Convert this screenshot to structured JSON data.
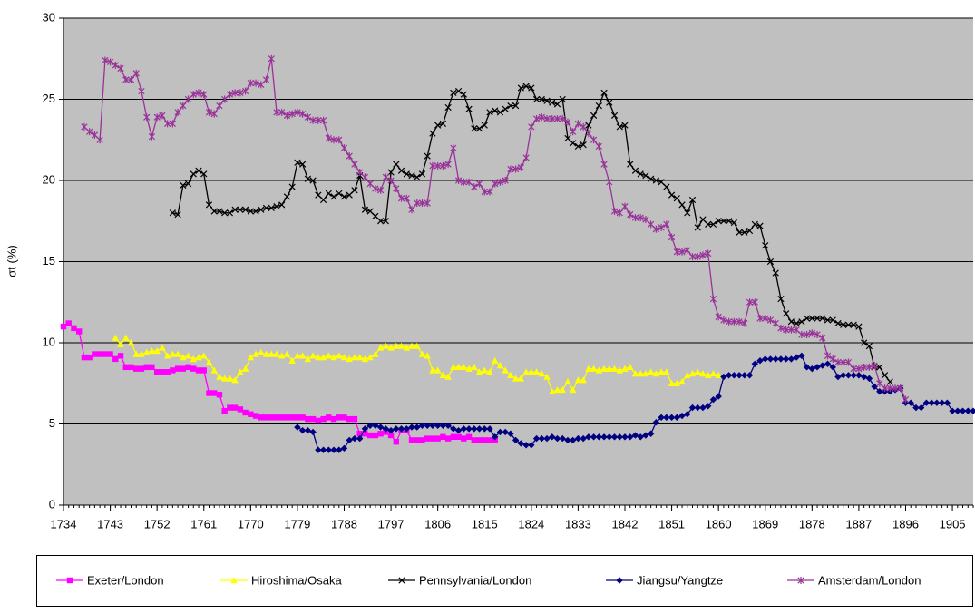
{
  "chart_data": {
    "type": "line",
    "y_label": "σt (%)",
    "xlim": [
      1734,
      1909
    ],
    "xticks": [
      1734,
      1743,
      1752,
      1761,
      1770,
      1779,
      1788,
      1797,
      1806,
      1815,
      1824,
      1833,
      1842,
      1851,
      1860,
      1869,
      1878,
      1887,
      1896,
      1905
    ],
    "ylim": [
      0,
      30
    ],
    "yticks": [
      0,
      5,
      10,
      15,
      20,
      25,
      30
    ],
    "grid": true,
    "legend": "bottom",
    "x": [
      1734,
      1735,
      1736,
      1737,
      1738,
      1739,
      1740,
      1741,
      1742,
      1743,
      1744,
      1745,
      1746,
      1747,
      1748,
      1749,
      1750,
      1751,
      1752,
      1753,
      1754,
      1755,
      1756,
      1757,
      1758,
      1759,
      1760,
      1761,
      1762,
      1763,
      1764,
      1765,
      1766,
      1767,
      1768,
      1769,
      1770,
      1771,
      1772,
      1773,
      1774,
      1775,
      1776,
      1777,
      1778,
      1779,
      1780,
      1781,
      1782,
      1783,
      1784,
      1785,
      1786,
      1787,
      1788,
      1789,
      1790,
      1791,
      1792,
      1793,
      1794,
      1795,
      1796,
      1797,
      1798,
      1799,
      1800,
      1801,
      1802,
      1803,
      1804,
      1805,
      1806,
      1807,
      1808,
      1809,
      1810,
      1811,
      1812,
      1813,
      1814,
      1815,
      1816,
      1817,
      1818,
      1819,
      1820,
      1821,
      1822,
      1823,
      1824,
      1825,
      1826,
      1827,
      1828,
      1829,
      1830,
      1831,
      1832,
      1833,
      1834,
      1835,
      1836,
      1837,
      1838,
      1839,
      1840,
      1841,
      1842,
      1843,
      1844,
      1845,
      1846,
      1847,
      1848,
      1849,
      1850,
      1851,
      1852,
      1853,
      1854,
      1855,
      1856,
      1857,
      1858,
      1859,
      1860,
      1861,
      1862,
      1863,
      1864,
      1865,
      1866,
      1867,
      1868,
      1869,
      1870,
      1871,
      1872,
      1873,
      1874,
      1875,
      1876,
      1877,
      1878,
      1879,
      1880,
      1881,
      1882,
      1883,
      1884,
      1885,
      1886,
      1887,
      1888,
      1889,
      1890,
      1891,
      1892,
      1893,
      1894,
      1895,
      1896,
      1897,
      1898,
      1899,
      1900,
      1901,
      1902,
      1903,
      1904,
      1905,
      1906,
      1907,
      1908,
      1909
    ],
    "series": [
      {
        "name": "Exeter/London",
        "color": "#ff00ff",
        "marker": "square",
        "values": [
          11.0,
          11.2,
          10.9,
          10.7,
          9.1,
          9.1,
          9.3,
          9.3,
          9.3,
          9.3,
          9.0,
          9.2,
          8.5,
          8.5,
          8.4,
          8.4,
          8.5,
          8.5,
          8.2,
          8.2,
          8.2,
          8.3,
          8.4,
          8.4,
          8.5,
          8.4,
          8.3,
          8.3,
          6.9,
          6.9,
          6.8,
          5.8,
          6.0,
          6.0,
          5.9,
          5.7,
          5.6,
          5.5,
          5.4,
          5.4,
          5.4,
          5.4,
          5.4,
          5.4,
          5.4,
          5.4,
          5.4,
          5.3,
          5.3,
          5.2,
          5.3,
          5.4,
          5.3,
          5.4,
          5.4,
          5.3,
          5.3,
          4.4,
          4.4,
          4.3,
          4.3,
          4.4,
          4.5,
          4.3,
          3.9,
          4.6,
          4.6,
          4.0,
          4.0,
          4.0,
          4.1,
          4.1,
          4.1,
          4.2,
          4.1,
          4.2,
          4.2,
          4.1,
          4.2,
          4.0,
          4.0,
          4.0,
          4.0,
          4.0,
          null,
          null,
          null,
          null,
          null,
          null,
          null,
          null,
          null,
          null,
          null,
          null,
          null,
          null,
          null,
          null,
          null,
          null,
          null,
          null,
          null,
          null,
          null,
          null,
          null,
          null,
          null,
          null,
          null,
          null,
          null,
          null,
          null,
          null,
          null,
          null,
          null,
          null,
          null,
          null,
          null,
          null,
          null,
          null,
          null,
          null,
          null,
          null,
          null,
          null,
          null,
          null,
          null,
          null,
          null,
          null,
          null,
          null,
          null,
          null,
          null,
          null,
          null,
          null,
          null,
          null,
          null,
          null,
          null,
          null,
          null,
          null,
          null,
          null,
          null,
          null,
          null,
          null,
          null,
          null,
          null,
          null,
          null,
          null,
          null,
          null,
          null,
          null,
          null,
          null,
          null,
          null
        ]
      },
      {
        "name": "Hiroshima/Osaka",
        "color": "#ffff00",
        "marker": "triangle",
        "values": [
          null,
          null,
          null,
          null,
          null,
          null,
          null,
          null,
          null,
          null,
          10.3,
          9.9,
          10.3,
          10.0,
          9.3,
          9.3,
          9.4,
          9.5,
          9.5,
          9.7,
          9.2,
          9.3,
          9.3,
          9.1,
          9.2,
          9.0,
          9.1,
          9.2,
          8.8,
          8.3,
          7.9,
          7.8,
          7.8,
          7.7,
          8.2,
          8.4,
          9.1,
          9.3,
          9.4,
          9.3,
          9.3,
          9.3,
          9.2,
          9.3,
          8.9,
          9.2,
          9.2,
          9.0,
          9.2,
          9.1,
          9.1,
          9.2,
          9.1,
          9.2,
          9.1,
          9.0,
          9.1,
          9.1,
          9.0,
          9.1,
          9.3,
          9.7,
          9.8,
          9.7,
          9.8,
          9.8,
          9.7,
          9.8,
          9.8,
          9.3,
          9.2,
          8.3,
          8.3,
          8.0,
          7.9,
          8.5,
          8.5,
          8.5,
          8.4,
          8.5,
          8.2,
          8.3,
          8.2,
          8.9,
          8.6,
          8.3,
          8.0,
          7.8,
          7.8,
          8.2,
          8.2,
          8.2,
          8.1,
          7.9,
          7.0,
          7.1,
          7.1,
          7.6,
          7.1,
          7.7,
          7.7,
          8.4,
          8.4,
          8.3,
          8.4,
          8.4,
          8.4,
          8.3,
          8.4,
          8.5,
          8.1,
          8.1,
          8.1,
          8.2,
          8.1,
          8.2,
          8.2,
          7.5,
          7.5,
          7.6,
          8.0,
          8.1,
          8.2,
          8.1,
          8.0,
          8.1,
          8.0,
          null,
          null,
          null,
          null,
          null,
          null,
          null,
          null,
          null,
          null,
          null,
          null,
          null,
          null,
          null,
          null,
          null,
          null,
          null,
          null,
          null,
          null,
          null,
          null,
          null,
          null,
          null,
          null,
          null,
          null,
          null,
          null,
          null,
          null,
          null,
          null,
          null,
          null,
          null,
          null,
          null,
          null,
          null,
          null,
          null,
          null,
          null,
          null,
          null
        ]
      },
      {
        "name": "Pennsylvania/London",
        "color": "#000000",
        "marker": "x",
        "values": [
          null,
          null,
          null,
          null,
          null,
          null,
          null,
          null,
          null,
          null,
          null,
          null,
          null,
          null,
          null,
          null,
          null,
          null,
          null,
          null,
          null,
          18.0,
          17.9,
          19.7,
          19.8,
          20.4,
          20.6,
          20.4,
          18.5,
          18.1,
          18.1,
          18.0,
          18.0,
          18.2,
          18.2,
          18.2,
          18.1,
          18.1,
          18.2,
          18.3,
          18.3,
          18.4,
          18.5,
          19.0,
          19.6,
          21.1,
          21.0,
          20.1,
          20.0,
          19.1,
          18.8,
          19.2,
          19.0,
          19.2,
          19.0,
          19.1,
          19.4,
          20.3,
          18.2,
          18.1,
          17.8,
          17.5,
          17.5,
          20.5,
          21.0,
          20.6,
          20.4,
          20.3,
          20.2,
          20.4,
          21.5,
          22.9,
          23.4,
          23.5,
          24.5,
          25.4,
          25.5,
          25.3,
          24.4,
          23.2,
          23.2,
          23.4,
          24.2,
          24.3,
          24.2,
          24.4,
          24.6,
          24.6,
          25.7,
          25.8,
          25.7,
          25.0,
          25.0,
          24.9,
          24.8,
          24.7,
          25.0,
          22.6,
          22.3,
          22.1,
          22.2,
          23.4,
          24.0,
          24.6,
          25.4,
          24.8,
          24.0,
          23.3,
          23.4,
          21.0,
          20.6,
          20.4,
          20.3,
          20.1,
          20.0,
          19.9,
          19.6,
          19.1,
          18.9,
          18.5,
          18.0,
          18.8,
          17.1,
          17.6,
          17.3,
          17.3,
          17.5,
          17.5,
          17.5,
          17.4,
          16.8,
          16.8,
          16.9,
          17.3,
          17.2,
          16.0,
          15.0,
          14.3,
          12.7,
          11.8,
          11.3,
          11.2,
          11.3,
          11.5,
          11.5,
          11.5,
          11.5,
          11.4,
          11.4,
          11.2,
          11.1,
          11.1,
          11.1,
          11.0,
          10.0,
          9.8,
          8.5,
          8.5,
          8.0,
          7.6,
          null,
          null,
          null,
          null,
          null,
          null,
          null,
          null,
          null,
          null,
          null,
          null,
          null,
          null,
          null,
          null
        ]
      },
      {
        "name": "Jiangsu/Yangtze",
        "color": "#000080",
        "marker": "diamond",
        "values": [
          null,
          null,
          null,
          null,
          null,
          null,
          null,
          null,
          null,
          null,
          null,
          null,
          null,
          null,
          null,
          null,
          null,
          null,
          null,
          null,
          null,
          null,
          null,
          null,
          null,
          null,
          null,
          null,
          null,
          null,
          null,
          null,
          null,
          null,
          null,
          null,
          null,
          null,
          null,
          null,
          null,
          null,
          null,
          null,
          null,
          4.8,
          4.6,
          4.6,
          4.5,
          3.4,
          3.4,
          3.4,
          3.4,
          3.4,
          3.5,
          4.0,
          4.1,
          4.1,
          4.7,
          4.9,
          4.9,
          4.8,
          4.7,
          4.6,
          4.7,
          4.7,
          4.7,
          4.8,
          4.8,
          4.9,
          4.9,
          4.9,
          4.9,
          4.9,
          4.9,
          4.7,
          4.6,
          4.7,
          4.7,
          4.7,
          4.7,
          4.7,
          4.7,
          4.2,
          4.5,
          4.5,
          4.4,
          4.0,
          3.8,
          3.7,
          3.7,
          4.1,
          4.1,
          4.1,
          4.2,
          4.1,
          4.1,
          4.0,
          4.0,
          4.1,
          4.1,
          4.2,
          4.2,
          4.2,
          4.2,
          4.2,
          4.2,
          4.2,
          4.2,
          4.2,
          4.3,
          4.2,
          4.3,
          4.4,
          5.1,
          5.4,
          5.4,
          5.4,
          5.4,
          5.5,
          5.6,
          6.0,
          6.0,
          6.0,
          6.1,
          6.5,
          6.7,
          7.9,
          8.0,
          8.0,
          8.0,
          8.0,
          8.0,
          8.7,
          8.9,
          9.0,
          9.0,
          9.0,
          9.0,
          9.0,
          9.0,
          9.1,
          9.2,
          8.5,
          8.4,
          8.5,
          8.6,
          8.7,
          8.5,
          7.9,
          8.0,
          8.0,
          8.0,
          8.0,
          7.9,
          7.8,
          7.3,
          7.0,
          7.0,
          7.0,
          7.1,
          7.2,
          6.3,
          6.3,
          6.0,
          6.0,
          6.3,
          6.3,
          6.3,
          6.3,
          6.3,
          5.8,
          5.8,
          5.8,
          5.8,
          5.8
        ]
      },
      {
        "name": "Amsterdam/London",
        "color": "#993399",
        "marker": "star",
        "values": [
          null,
          null,
          null,
          null,
          23.3,
          23.0,
          22.8,
          22.5,
          27.4,
          27.3,
          27.1,
          26.9,
          26.2,
          26.2,
          26.6,
          25.5,
          23.9,
          22.7,
          23.9,
          24.0,
          23.5,
          23.5,
          24.2,
          24.6,
          25.0,
          25.3,
          25.4,
          25.3,
          24.2,
          24.1,
          24.6,
          25.0,
          25.3,
          25.4,
          25.4,
          25.5,
          26.0,
          26.0,
          25.9,
          26.2,
          27.5,
          24.2,
          24.2,
          24.0,
          24.1,
          24.2,
          24.1,
          23.9,
          23.7,
          23.7,
          23.7,
          22.6,
          22.5,
          22.5,
          22.0,
          21.5,
          21.0,
          20.5,
          20.2,
          19.8,
          19.5,
          19.4,
          20.2,
          20.0,
          19.5,
          18.9,
          18.9,
          18.2,
          18.6,
          18.6,
          18.6,
          20.9,
          20.9,
          20.9,
          21.0,
          22.0,
          20.0,
          19.9,
          19.9,
          19.6,
          19.8,
          19.3,
          19.3,
          19.8,
          19.9,
          20.0,
          20.7,
          20.7,
          20.8,
          21.4,
          23.3,
          23.8,
          23.9,
          23.8,
          23.8,
          23.8,
          23.8,
          23.6,
          23.0,
          23.5,
          23.3,
          22.9,
          22.5,
          22.1,
          21.0,
          19.9,
          18.1,
          18.0,
          18.4,
          17.9,
          17.7,
          17.7,
          17.6,
          17.3,
          17.0,
          17.1,
          17.3,
          16.5,
          15.6,
          15.6,
          15.7,
          15.3,
          15.3,
          15.4,
          15.5,
          12.7,
          11.6,
          11.4,
          11.3,
          11.3,
          11.3,
          11.2,
          12.5,
          12.5,
          11.5,
          11.5,
          11.4,
          11.2,
          10.9,
          10.8,
          10.8,
          10.8,
          10.5,
          10.5,
          10.6,
          10.5,
          10.3,
          9.2,
          9.0,
          8.8,
          8.8,
          8.8,
          8.4,
          8.4,
          8.5,
          8.5,
          8.6,
          7.5,
          7.2,
          7.2,
          7.2,
          7.2,
          6.5,
          null,
          null,
          null,
          null,
          null,
          null,
          null,
          null,
          null,
          null,
          null,
          null,
          null
        ]
      }
    ]
  }
}
